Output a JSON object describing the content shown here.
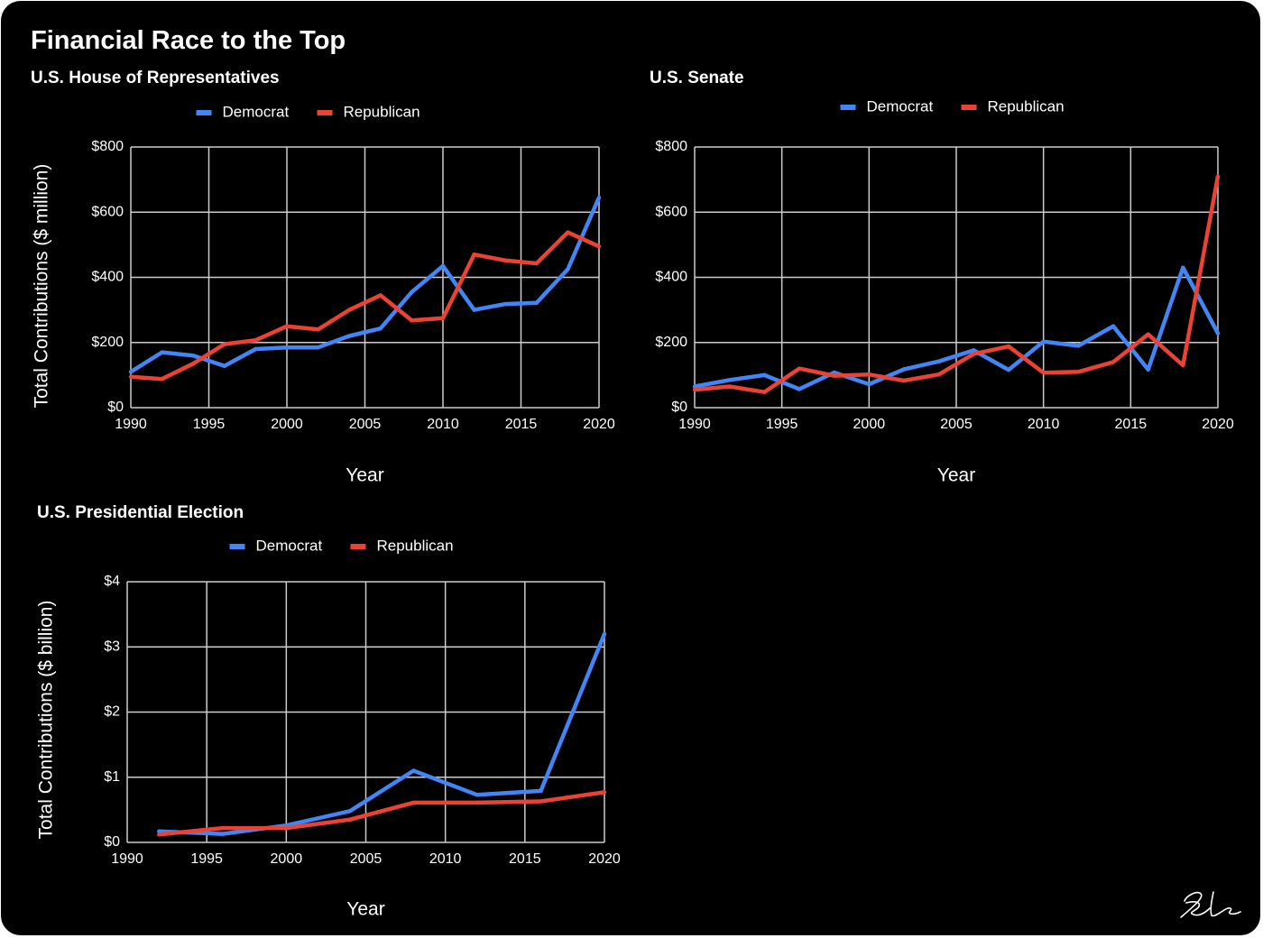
{
  "title": "Financial Race to the Top",
  "colors": {
    "democrat": "#4285f4",
    "republican": "#ea4335",
    "background": "#000000",
    "text": "#ffffff",
    "grid": "#cccccc"
  },
  "signature_text": "RL",
  "chart_data": [
    {
      "type": "line",
      "title": "U.S. House of Representatives",
      "xlabel": "Year",
      "ylabel": "Total Contributions ($ million)",
      "xlim": [
        1990,
        2020
      ],
      "ylim": [
        0,
        800
      ],
      "xticks": [
        1990,
        1995,
        2000,
        2005,
        2010,
        2015,
        2020
      ],
      "yticks": [
        0,
        200,
        400,
        600,
        800
      ],
      "ytick_labels": [
        "$0",
        "$200",
        "$400",
        "$600",
        "$800"
      ],
      "grid": true,
      "legend_position": "top",
      "series": [
        {
          "name": "Democrat",
          "color": "#4285f4",
          "x": [
            1990,
            1992,
            1994,
            1996,
            1998,
            2000,
            2002,
            2004,
            2006,
            2008,
            2010,
            2012,
            2014,
            2016,
            2018,
            2020
          ],
          "y": [
            110,
            170,
            160,
            128,
            180,
            185,
            185,
            220,
            243,
            355,
            435,
            300,
            318,
            322,
            425,
            645
          ]
        },
        {
          "name": "Republican",
          "color": "#ea4335",
          "x": [
            1990,
            1992,
            1994,
            1996,
            1998,
            2000,
            2002,
            2004,
            2006,
            2008,
            2010,
            2012,
            2014,
            2016,
            2018,
            2020
          ],
          "y": [
            95,
            88,
            135,
            195,
            207,
            250,
            240,
            300,
            345,
            268,
            275,
            470,
            452,
            443,
            538,
            495
          ]
        }
      ]
    },
    {
      "type": "line",
      "title": "U.S. Senate",
      "xlabel": "Year",
      "ylabel": "",
      "xlim": [
        1990,
        2020
      ],
      "ylim": [
        0,
        800
      ],
      "xticks": [
        1990,
        1995,
        2000,
        2005,
        2010,
        2015,
        2020
      ],
      "yticks": [
        0,
        200,
        400,
        600,
        800
      ],
      "ytick_labels": [
        "$0",
        "$200",
        "$400",
        "$600",
        "$800"
      ],
      "grid": true,
      "legend_position": "top",
      "series": [
        {
          "name": "Democrat",
          "color": "#4285f4",
          "x": [
            1990,
            1992,
            1994,
            1996,
            1998,
            2000,
            2002,
            2004,
            2006,
            2008,
            2010,
            2012,
            2014,
            2016,
            2018,
            2020
          ],
          "y": [
            65,
            85,
            100,
            57,
            108,
            72,
            118,
            142,
            176,
            116,
            203,
            190,
            250,
            117,
            430,
            228
          ]
        },
        {
          "name": "Republican",
          "color": "#ea4335",
          "x": [
            1990,
            1992,
            1994,
            1996,
            1998,
            2000,
            2002,
            2004,
            2006,
            2008,
            2010,
            2012,
            2014,
            2016,
            2018,
            2020
          ],
          "y": [
            55,
            65,
            48,
            120,
            98,
            102,
            83,
            102,
            165,
            188,
            107,
            110,
            140,
            225,
            130,
            710
          ]
        }
      ]
    },
    {
      "type": "line",
      "title": "U.S. Presidential Election",
      "xlabel": "Year",
      "ylabel": "Total Contributions ($ billion)",
      "xlim": [
        1990,
        2020
      ],
      "ylim": [
        0,
        4
      ],
      "xticks": [
        1990,
        1995,
        2000,
        2005,
        2010,
        2015,
        2020
      ],
      "yticks": [
        0,
        1,
        2,
        3,
        4
      ],
      "ytick_labels": [
        "$0",
        "$1",
        "$2",
        "$3",
        "$4"
      ],
      "grid": true,
      "legend_position": "top",
      "series": [
        {
          "name": "Democrat",
          "color": "#4285f4",
          "x": [
            1992,
            1996,
            2000,
            2004,
            2008,
            2012,
            2016,
            2020
          ],
          "y": [
            0.17,
            0.13,
            0.26,
            0.48,
            1.1,
            0.73,
            0.79,
            3.2
          ]
        },
        {
          "name": "Republican",
          "color": "#ea4335",
          "x": [
            1992,
            1996,
            2000,
            2004,
            2008,
            2012,
            2016,
            2020
          ],
          "y": [
            0.12,
            0.22,
            0.22,
            0.35,
            0.61,
            0.61,
            0.63,
            0.77
          ]
        }
      ]
    }
  ]
}
